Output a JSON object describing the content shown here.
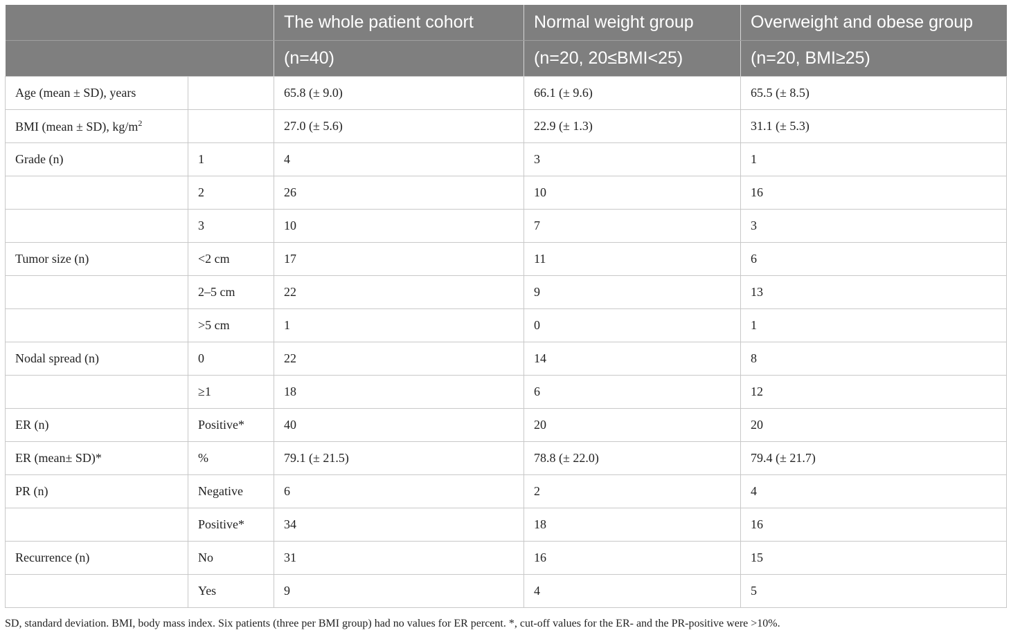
{
  "table": {
    "header_row1": [
      "",
      "",
      "The whole patient cohort",
      "Normal weight group",
      "Overweight and obese group"
    ],
    "header_row2": [
      "",
      "",
      "(n=40)",
      "(n=20, 20≤BMI<25)",
      "(n=20, BMI≥25)"
    ],
    "bmi_superscript": "2",
    "rows": [
      [
        "Age (mean ± SD), years",
        "",
        "65.8 (± 9.0)",
        "66.1 (± 9.6)",
        "65.5 (± 8.5)"
      ],
      [
        "BMI (mean ± SD), kg/m",
        "",
        "27.0 (± 5.6)",
        "22.9 (± 1.3)",
        "31.1 (± 5.3)"
      ],
      [
        "Grade (n)",
        "1",
        "4",
        "3",
        "1"
      ],
      [
        "",
        "2",
        "26",
        "10",
        "16"
      ],
      [
        "",
        "3",
        "10",
        "7",
        "3"
      ],
      [
        "Tumor size (n)",
        "<2 cm",
        "17",
        "11",
        "6"
      ],
      [
        "",
        "2–5 cm",
        "22",
        "9",
        "13"
      ],
      [
        "",
        ">5 cm",
        "1",
        "0",
        "1"
      ],
      [
        "Nodal spread (n)",
        "0",
        "22",
        "14",
        "8"
      ],
      [
        "",
        "≥1",
        "18",
        "6",
        "12"
      ],
      [
        "ER (n)",
        "Positive*",
        "40",
        "20",
        "20"
      ],
      [
        "ER (mean± SD)*",
        "%",
        "79.1 (± 21.5)",
        "78.8 (± 22.0)",
        "79.4 (± 21.7)"
      ],
      [
        "PR (n)",
        "Negative",
        "6",
        "2",
        "4"
      ],
      [
        "",
        "Positive*",
        "34",
        "18",
        "16"
      ],
      [
        "Recurrence (n)",
        "No",
        "31",
        "16",
        "15"
      ],
      [
        "",
        "Yes",
        "9",
        "4",
        "5"
      ]
    ]
  },
  "footnote": "SD, standard deviation. BMI, body mass index. Six patients (three per BMI group) had no values for ER percent. *, cut-off values for the ER- and the PR-positive were >10%."
}
